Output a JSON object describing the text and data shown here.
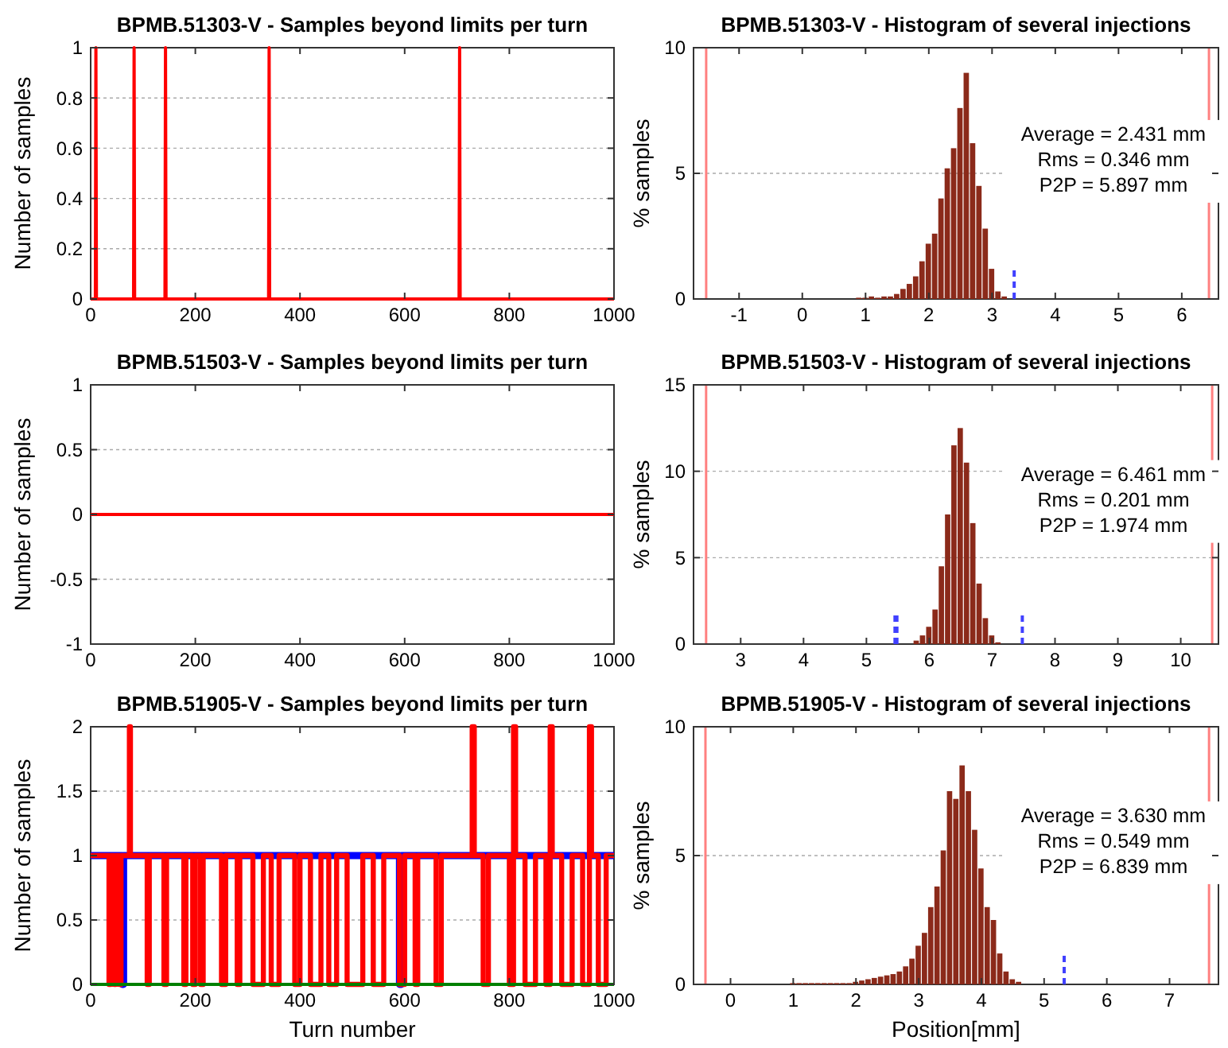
{
  "chart_data": [
    {
      "type": "line",
      "title": "BPMB.51303-V - Samples beyond limits per turn",
      "ylabel": "Number of samples",
      "xlim": [
        0,
        1000
      ],
      "xticks": [
        0,
        200,
        400,
        600,
        800,
        1000
      ],
      "ylim": [
        0,
        1
      ],
      "yticks": [
        0,
        0.2,
        0.4,
        0.6,
        0.8,
        1
      ],
      "grid": "y",
      "series": [
        {
          "color": "#ff0000",
          "x": [
            0,
            9,
            10,
            11,
            82,
            83,
            84,
            142,
            143,
            144,
            340,
            341,
            342,
            704,
            705,
            706,
            1000
          ],
          "values": [
            0,
            0,
            1,
            0,
            0,
            1,
            0,
            0,
            1,
            0,
            0,
            1,
            0,
            0,
            1,
            0,
            0
          ]
        }
      ]
    },
    {
      "type": "histogram",
      "title": "BPMB.51303-V - Histogram of several injections",
      "ylabel": "% samples",
      "xlim": [
        -1.72,
        6.58
      ],
      "xticks": [
        -1,
        0,
        1,
        2,
        3,
        4,
        5,
        6
      ],
      "ylim": [
        0,
        10
      ],
      "yticks": [
        0,
        5,
        10
      ],
      "grid": "y",
      "color": "#8b2a1a",
      "bins": [
        0.85,
        0.95,
        1.05,
        1.15,
        1.25,
        1.35,
        1.45,
        1.55,
        1.65,
        1.75,
        1.85,
        1.95,
        2.05,
        2.15,
        2.25,
        2.35,
        2.45,
        2.55,
        2.65,
        2.75,
        2.85,
        2.95,
        3.05,
        3.15,
        3.25
      ],
      "values": [
        0.05,
        0.05,
        0.1,
        0.05,
        0.1,
        0.1,
        0.2,
        0.4,
        0.6,
        0.9,
        1.5,
        2.2,
        2.6,
        4.0,
        5.2,
        6.0,
        7.6,
        9.0,
        6.2,
        4.5,
        2.8,
        1.2,
        0.3,
        0.1
      ],
      "series": [
        {
          "type": "line",
          "color": "#4040ff",
          "line_style": "dashed",
          "x": [
            3.35,
            3.35
          ],
          "values": [
            0,
            1.2
          ]
        }
      ],
      "ref_lines": [
        {
          "axis": "x",
          "value": -1.52,
          "color": "#ff8080"
        },
        {
          "axis": "x",
          "value": 6.43,
          "color": "#ff8080"
        }
      ],
      "annotations": [
        "Average = 2.431 mm",
        "Rms = 0.346 mm",
        "P2P = 5.897 mm"
      ]
    },
    {
      "type": "line",
      "title": "BPMB.51503-V - Samples beyond limits per turn",
      "ylabel": "Number of samples",
      "xlim": [
        0,
        1000
      ],
      "xticks": [
        0,
        200,
        400,
        600,
        800,
        1000
      ],
      "ylim": [
        -1,
        1
      ],
      "yticks": [
        -1,
        -0.5,
        0,
        0.5,
        1
      ],
      "grid": "y",
      "series": [
        {
          "color": "#ff0000",
          "x": [
            0,
            1000
          ],
          "values": [
            0,
            0
          ]
        }
      ]
    },
    {
      "type": "histogram",
      "title": "BPMB.51503-V - Histogram of several injections",
      "ylabel": "% samples",
      "xlim": [
        2.25,
        10.6
      ],
      "xticks": [
        3,
        4,
        5,
        6,
        7,
        8,
        9,
        10
      ],
      "ylim": [
        0,
        15
      ],
      "yticks": [
        0,
        5,
        10,
        15
      ],
      "grid": "y",
      "color": "#8b2a1a",
      "bins": [
        5.75,
        5.85,
        5.95,
        6.05,
        6.15,
        6.25,
        6.35,
        6.45,
        6.55,
        6.65,
        6.75,
        6.85,
        6.95,
        7.05,
        7.15
      ],
      "values": [
        0.2,
        0.5,
        1.0,
        2.0,
        4.5,
        7.5,
        11.5,
        12.5,
        10.5,
        7.0,
        3.5,
        1.5,
        0.5,
        0.1
      ],
      "series": [
        {
          "type": "line",
          "color": "#4040ff",
          "line_style": "dashed",
          "x": [
            5.47,
            5.47
          ],
          "values": [
            0,
            1.9
          ]
        },
        {
          "type": "line",
          "color": "#4040ff",
          "line_style": "dashed",
          "x": [
            7.48,
            7.48
          ],
          "values": [
            0,
            1.9
          ]
        }
      ],
      "ref_lines": [
        {
          "axis": "x",
          "value": 2.45,
          "color": "#ff8080"
        },
        {
          "axis": "x",
          "value": 10.5,
          "color": "#ff8080"
        }
      ],
      "annotations": [
        "Average = 6.461 mm",
        "Rms = 0.201 mm",
        "P2P = 1.974 mm"
      ]
    },
    {
      "type": "step",
      "title": "BPMB.51905-V - Samples beyond limits per turn",
      "xlabel": "Turn number",
      "ylabel": "Number of samples",
      "xlim": [
        0,
        1000
      ],
      "xticks": [
        0,
        200,
        400,
        600,
        800,
        1000
      ],
      "ylim": [
        0,
        2
      ],
      "yticks": [
        0,
        0.5,
        1,
        1.5,
        2
      ],
      "grid": "y",
      "series": [
        {
          "color": "#0000ff",
          "x": [
            0,
            60,
            63,
            590,
            594,
            1000
          ],
          "values": [
            1,
            0,
            1,
            0,
            1,
            1
          ]
        },
        {
          "color": "#ff0000",
          "x": [
            0,
            35,
            38,
            45,
            48,
            55,
            58,
            74,
            76,
            108,
            112,
            140,
            145,
            178,
            182,
            195,
            200,
            210,
            215,
            250,
            258,
            280,
            285,
            310,
            330,
            345,
            360,
            390,
            400,
            420,
            440,
            455,
            470,
            490,
            520,
            540,
            560,
            590,
            600,
            620,
            625,
            660,
            670,
            700,
            729,
            733,
            750,
            760,
            800,
            808,
            812,
            830,
            850,
            870,
            878,
            882,
            900,
            920,
            940,
            953,
            957,
            970,
            985,
            1000
          ],
          "values": [
            1,
            0,
            1,
            0,
            1,
            0,
            1,
            2,
            1,
            0,
            1,
            0,
            1,
            0,
            1,
            0,
            1,
            0,
            1,
            0,
            1,
            0,
            1,
            0,
            1,
            0,
            1,
            0,
            1,
            0,
            1,
            0,
            1,
            0,
            1,
            0,
            1,
            0,
            1,
            0,
            1,
            0,
            1,
            1,
            2,
            1,
            0,
            1,
            0,
            2,
            1,
            0,
            1,
            0,
            2,
            1,
            0,
            1,
            0,
            2,
            1,
            0,
            1,
            1
          ]
        },
        {
          "color": "#008000",
          "x": [
            0,
            1000
          ],
          "values": [
            0,
            0
          ]
        }
      ]
    },
    {
      "type": "histogram",
      "title": "BPMB.51905-V - Histogram of several injections",
      "xlabel": "Position[mm]",
      "ylabel": "% samples",
      "xlim": [
        -0.59,
        7.78
      ],
      "xticks": [
        0,
        1,
        2,
        3,
        4,
        5,
        6,
        7
      ],
      "ylim": [
        0,
        10
      ],
      "yticks": [
        0,
        5,
        10
      ],
      "grid": "y",
      "color": "#8b2a1a",
      "bins": [
        0.95,
        1.05,
        1.15,
        1.25,
        1.35,
        1.45,
        1.55,
        1.65,
        1.75,
        1.85,
        1.95,
        2.05,
        2.15,
        2.25,
        2.35,
        2.45,
        2.55,
        2.65,
        2.75,
        2.85,
        2.95,
        3.05,
        3.15,
        3.25,
        3.35,
        3.45,
        3.55,
        3.65,
        3.75,
        3.85,
        3.95,
        4.05,
        4.15,
        4.25,
        4.35,
        4.45,
        4.55,
        4.65
      ],
      "values": [
        0.05,
        0.05,
        0.05,
        0.05,
        0.05,
        0.05,
        0.05,
        0.05,
        0.05,
        0.05,
        0.1,
        0.15,
        0.2,
        0.25,
        0.3,
        0.35,
        0.4,
        0.5,
        0.7,
        1.0,
        1.5,
        2.0,
        3.0,
        3.8,
        5.2,
        7.5,
        7.2,
        8.5,
        7.5,
        6.0,
        4.5,
        3.0,
        2.5,
        1.2,
        0.5,
        0.2,
        0.1
      ],
      "series": [
        {
          "type": "line",
          "color": "#4040ff",
          "line_style": "dashed",
          "x": [
            5.32,
            5.32
          ],
          "values": [
            0,
            1.2
          ]
        }
      ],
      "ref_lines": [
        {
          "axis": "x",
          "value": -0.4,
          "color": "#ff8080"
        },
        {
          "axis": "x",
          "value": 7.63,
          "color": "#ff8080"
        }
      ],
      "annotations": [
        "Average = 3.630 mm",
        "Rms = 0.549 mm",
        "P2P = 6.839 mm"
      ]
    }
  ]
}
